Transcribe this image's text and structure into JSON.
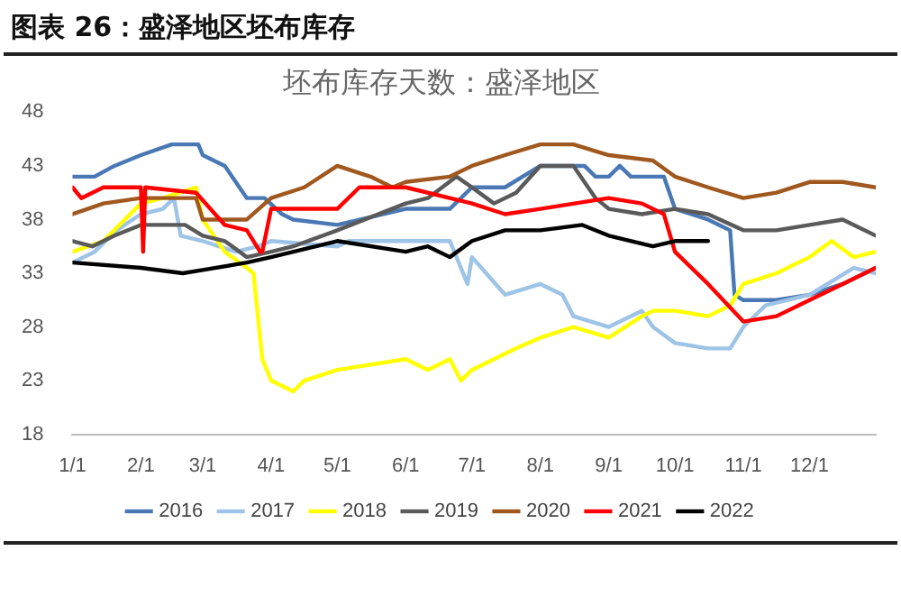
{
  "chart_data": {
    "type": "line",
    "title": "图表 26：盛泽地区坯布库存",
    "subtitle": "坯布库存天数：盛泽地区",
    "xlim": [
      "--01-01",
      "--12-31"
    ],
    "xticks": [
      {
        "value": "--01-01",
        "label": "1/1"
      },
      {
        "value": "--02-01",
        "label": "2/1"
      },
      {
        "value": "--03-01",
        "label": "3/1"
      },
      {
        "value": "--04-01",
        "label": "4/1"
      },
      {
        "value": "--05-01",
        "label": "5/1"
      },
      {
        "value": "--06-01",
        "label": "6/1"
      },
      {
        "value": "--07-01",
        "label": "7/1"
      },
      {
        "value": "--08-01",
        "label": "8/1"
      },
      {
        "value": "--09-01",
        "label": "9/1"
      },
      {
        "value": "--10-01",
        "label": "10/1"
      },
      {
        "value": "--11-01",
        "label": "11/1"
      },
      {
        "value": "--12-01",
        "label": "12/1"
      }
    ],
    "ylim": [
      18,
      48
    ],
    "yticks": [
      18,
      23,
      28,
      33,
      38,
      43,
      48
    ],
    "grid": false,
    "legend": "bottom",
    "marker": "none",
    "line_style": "solid",
    "series": [
      {
        "name": "2016",
        "color": "#4a78b4",
        "x": [
          "--01-01",
          "--01-11",
          "--01-20",
          "--02-01",
          "--02-15",
          "--02-27",
          "--03-01",
          "--03-11",
          "--03-21",
          "--03-29",
          "--04-06",
          "--04-11",
          "--05-01",
          "--06-01",
          "--06-21",
          "--07-01",
          "--07-16",
          "--08-01",
          "--08-21",
          "--08-26",
          "--09-01",
          "--09-06",
          "--09-11",
          "--09-26",
          "--10-01",
          "--10-16",
          "--10-21",
          "--10-26",
          "--10-28",
          "--11-01",
          "--11-16",
          "--12-01",
          "--12-16",
          "--12-31"
        ],
        "values": [
          42,
          42,
          43,
          44,
          45,
          45,
          44,
          43,
          40,
          40,
          38.5,
          38,
          37.5,
          39,
          39,
          41,
          41,
          43,
          43,
          42,
          42,
          43,
          42,
          42,
          39,
          38,
          37.5,
          37,
          31,
          30.5,
          30.5,
          31,
          32,
          33.5
        ]
      },
      {
        "name": "2017",
        "color": "#9dc3e6",
        "x": [
          "--01-01",
          "--01-11",
          "--01-21",
          "--02-01",
          "--02-11",
          "--02-16",
          "--02-19",
          "--03-01",
          "--03-16",
          "--03-26",
          "--04-01",
          "--05-01",
          "--05-06",
          "--06-01",
          "--06-21",
          "--06-29",
          "--07-01",
          "--07-16",
          "--08-01",
          "--08-11",
          "--08-16",
          "--09-01",
          "--09-16",
          "--09-21",
          "--10-01",
          "--10-16",
          "--10-26",
          "--11-01",
          "--11-11",
          "--12-01",
          "--12-21",
          "--12-31"
        ],
        "values": [
          34,
          35,
          37,
          38.5,
          39,
          40,
          36.5,
          36,
          35,
          35.5,
          36,
          35.5,
          36,
          36,
          36,
          32,
          34.5,
          31,
          32,
          31,
          29,
          28,
          29.5,
          28,
          26.5,
          26,
          26,
          28,
          30,
          31,
          33.5,
          33
        ]
      },
      {
        "name": "2018",
        "color": "#ffff00",
        "x": [
          "--01-01",
          "--01-15",
          "--02-01",
          "--02-11",
          "--02-26",
          "--03-01",
          "--03-11",
          "--03-21",
          "--03-24",
          "--03-28",
          "--04-01",
          "--04-11",
          "--04-16",
          "--05-01",
          "--06-01",
          "--06-11",
          "--06-21",
          "--06-26",
          "--07-01",
          "--07-21",
          "--08-01",
          "--08-16",
          "--09-01",
          "--09-16",
          "--09-21",
          "--10-01",
          "--10-16",
          "--10-26",
          "--11-01",
          "--11-16",
          "--12-01",
          "--12-11",
          "--12-21",
          "--12-31"
        ],
        "values": [
          35,
          36,
          39.5,
          40,
          41,
          38,
          35,
          33.5,
          33,
          25,
          23,
          22,
          23,
          24,
          25,
          24,
          25,
          23,
          24,
          26,
          27,
          28,
          27,
          29,
          29.5,
          29.5,
          29,
          30,
          32,
          33,
          34.5,
          36,
          34.5,
          35
        ]
      },
      {
        "name": "2019",
        "color": "#5a5a5a",
        "x": [
          "--01-01",
          "--01-10",
          "--01-20",
          "--02-01",
          "--02-21",
          "--03-01",
          "--03-11",
          "--03-21",
          "--04-01",
          "--04-11",
          "--05-01",
          "--06-01",
          "--06-11",
          "--06-24",
          "--07-01",
          "--07-11",
          "--07-21",
          "--08-01",
          "--08-16",
          "--08-26",
          "--09-01",
          "--09-16",
          "--10-01",
          "--10-16",
          "--11-01",
          "--11-16",
          "--12-01",
          "--12-16",
          "--12-31"
        ],
        "values": [
          36,
          35.5,
          36.5,
          37.5,
          37.5,
          36.5,
          36,
          34.5,
          35,
          35.5,
          37,
          39.5,
          40,
          42,
          41,
          39.5,
          40.5,
          43,
          43,
          40,
          39,
          38.5,
          39,
          38.5,
          37,
          37,
          37.5,
          38,
          36.5
        ]
      },
      {
        "name": "2020",
        "color": "#a0581e",
        "x": [
          "--01-01",
          "--01-15",
          "--02-01",
          "--02-26",
          "--03-01",
          "--03-21",
          "--04-01",
          "--04-16",
          "--05-01",
          "--05-16",
          "--05-26",
          "--06-01",
          "--06-21",
          "--07-01",
          "--07-16",
          "--08-01",
          "--08-16",
          "--09-01",
          "--09-21",
          "--10-01",
          "--10-16",
          "--11-01",
          "--11-16",
          "--12-01",
          "--12-16",
          "--12-31"
        ],
        "values": [
          38.5,
          39.5,
          40,
          40,
          38,
          38,
          40,
          41,
          43,
          42,
          41,
          41.5,
          42,
          43,
          44,
          45,
          45,
          44,
          43.5,
          42,
          41,
          40,
          40.5,
          41.5,
          41.5,
          41
        ]
      },
      {
        "name": "2021",
        "color": "#ff0000",
        "x": [
          "--01-01",
          "--01-05",
          "--01-15",
          "--02-01",
          "--02-02",
          "--02-03",
          "--02-26",
          "--03-11",
          "--03-21",
          "--03-27",
          "--03-28",
          "--04-01",
          "--05-01",
          "--05-11",
          "--06-01",
          "--07-01",
          "--07-16",
          "--08-01",
          "--09-01",
          "--09-16",
          "--09-26",
          "--10-01",
          "--10-16",
          "--11-01",
          "--11-16",
          "--12-01",
          "--12-16",
          "--12-31"
        ],
        "values": [
          41,
          40,
          41,
          41,
          35,
          41,
          40.5,
          37.5,
          37,
          35,
          35,
          39,
          39,
          41,
          41,
          39.5,
          38.5,
          39,
          40,
          39.5,
          38.5,
          35,
          32,
          28.5,
          29,
          30.5,
          32,
          33.5
        ]
      },
      {
        "name": "2022",
        "color": "#000000",
        "x": [
          "--01-01",
          "--02-01",
          "--02-20",
          "--03-01",
          "--03-21",
          "--04-01",
          "--05-01",
          "--06-01",
          "--06-11",
          "--06-21",
          "--07-01",
          "--07-16",
          "--08-01",
          "--08-20",
          "--09-01",
          "--09-21",
          "--10-01",
          "--10-16"
        ],
        "values": [
          34,
          33.5,
          33,
          33.3,
          34,
          34.5,
          36,
          35,
          35.5,
          34.5,
          36,
          37,
          37,
          37.5,
          36.5,
          35.5,
          36,
          36
        ]
      }
    ]
  }
}
